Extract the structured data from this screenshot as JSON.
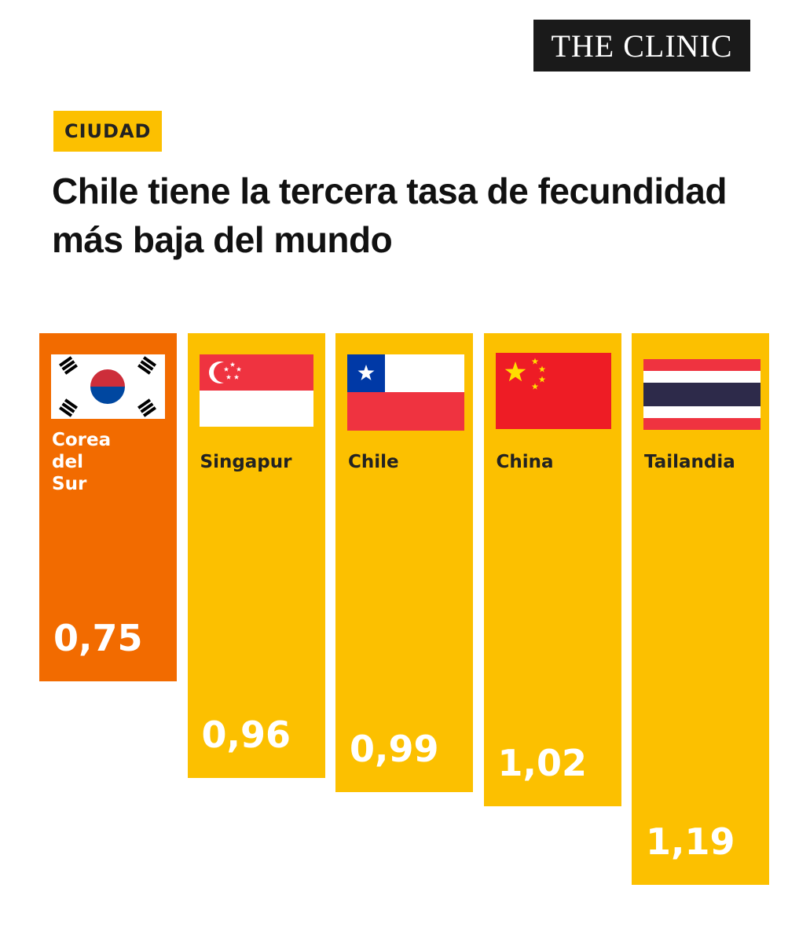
{
  "brand": "THE CLINIC",
  "section": "CIUDAD",
  "title": "Chile tiene la tercera tasa de fecundidad más baja del mundo",
  "chart_data": {
    "type": "bar",
    "categories": [
      "Corea del Sur",
      "Singapur",
      "Chile",
      "China",
      "Tailandia"
    ],
    "values": [
      0.75,
      0.96,
      0.99,
      1.02,
      1.19
    ],
    "value_labels": [
      "0,75",
      "0,96",
      "0,99",
      "1,02",
      "1,19"
    ],
    "colors": [
      "#f26b00",
      "#fcc000",
      "#fcc000",
      "#fcc000",
      "#fcc000"
    ]
  }
}
